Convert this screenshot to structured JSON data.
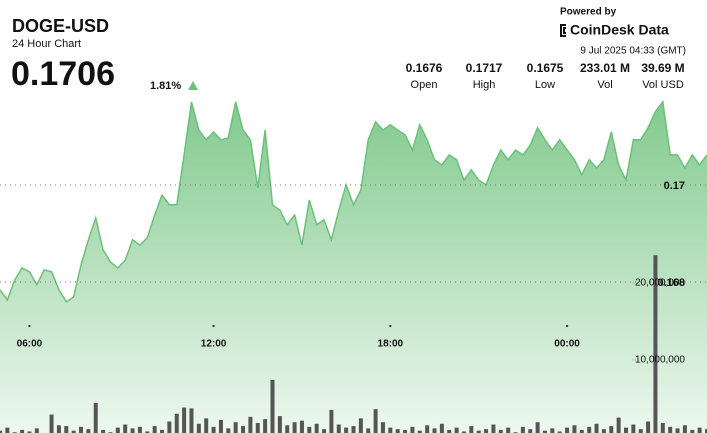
{
  "chart_data": {
    "type": "area",
    "title": "DOGE-USD",
    "subtitle": "24 Hour Chart",
    "price": 0.1706,
    "change": "1.81%",
    "stats": [
      {
        "label": "Open",
        "value": 0.1676
      },
      {
        "label": "High",
        "value": 0.1717
      },
      {
        "label": "Low",
        "value": 0.1675
      },
      {
        "label": "Vol",
        "value": "233.01 M"
      },
      {
        "label": "Vol USD",
        "value": "39.69 M"
      }
    ],
    "powered_by": "Powered by",
    "brand": "CoinDesk Data",
    "timestamp": "9 Jul 2025 04:33 (GMT)",
    "categories": [
      null,
      null,
      null,
      null,
      "06:00",
      null,
      null,
      null,
      null,
      null,
      null,
      null,
      null,
      null,
      null,
      null,
      null,
      null,
      null,
      null,
      null,
      null,
      null,
      null,
      null,
      null,
      null,
      null,
      null,
      "12:00",
      null,
      null,
      null,
      null,
      null,
      null,
      null,
      null,
      null,
      null,
      null,
      null,
      null,
      null,
      null,
      null,
      null,
      null,
      null,
      null,
      null,
      null,
      null,
      "18:00",
      null,
      null,
      null,
      null,
      null,
      null,
      null,
      null,
      null,
      null,
      null,
      null,
      null,
      null,
      null,
      null,
      null,
      null,
      null,
      null,
      null,
      null,
      null,
      "00:00",
      null,
      null,
      null,
      null,
      null,
      null,
      null,
      null,
      null,
      null,
      null,
      null,
      null,
      null,
      null,
      null,
      null,
      null,
      null
    ],
    "series": [
      {
        "color": "#6cc07a",
        "values": [
          0.16784,
          0.16763,
          0.16804,
          0.16829,
          0.16821,
          0.16794,
          0.16825,
          0.16821,
          0.16784,
          0.16759,
          0.16769,
          0.16835,
          0.16887,
          0.16932,
          0.16866,
          0.16841,
          0.16829,
          0.16845,
          0.16887,
          0.16876,
          0.16891,
          0.16938,
          0.16979,
          0.16959,
          0.16959,
          0.17062,
          0.17171,
          0.17113,
          0.17093,
          0.17109,
          0.17093,
          0.17097,
          0.17171,
          0.17113,
          0.17093,
          0.16994,
          0.17113,
          0.16959,
          0.16948,
          0.16918,
          0.16938,
          0.16876,
          0.16969,
          0.16918,
          0.16928,
          0.16887,
          0.16948,
          0.17,
          0.16959,
          0.1699,
          0.17093,
          0.1713,
          0.17113,
          0.17124,
          0.17113,
          0.17103,
          0.17072,
          0.17124,
          0.17093,
          0.17052,
          0.17041,
          0.17062,
          0.17052,
          0.1701,
          0.17031,
          0.1701,
          0.17,
          0.17041,
          0.17072,
          0.17052,
          0.17072,
          0.17062,
          0.17082,
          0.17118,
          0.17093,
          0.17072,
          0.17093,
          0.17072,
          0.17052,
          0.17021,
          0.17052,
          0.17035,
          0.17052,
          0.17109,
          0.17041,
          0.1701,
          0.17093,
          0.17093,
          0.17118,
          0.17151,
          0.17171,
          0.17062,
          0.17062,
          0.17035,
          0.17062,
          0.17041,
          0.17062
        ]
      },
      {
        "color": "#555555",
        "axis": "y2",
        "values": [
          800000,
          1200000,
          600000,
          900000,
          700000,
          1100000,
          500000,
          2900000,
          1500000,
          1400000,
          800000,
          1300000,
          1000000,
          4400000,
          900000,
          600000,
          1200000,
          1600000,
          1100000,
          1300000,
          700000,
          1400000,
          900000,
          2000000,
          3000000,
          3800000,
          3700000,
          1700000,
          2400000,
          1300000,
          2200000,
          1100000,
          1900000,
          1400000,
          2600000,
          1800000,
          2300000,
          7400000,
          2700000,
          1500000,
          1900000,
          2100000,
          1300000,
          1700000,
          1000000,
          3500000,
          1600000,
          1200000,
          1400000,
          2400000,
          1100000,
          3600000,
          1900000,
          1200000,
          1000000,
          900000,
          1300000,
          800000,
          1500000,
          1100000,
          1700000,
          900000,
          1200000,
          700000,
          1400000,
          800000,
          1000000,
          1600000,
          900000,
          1200000,
          600000,
          1300000,
          1000000,
          1900000,
          800000,
          1100000,
          700000,
          1200000,
          1500000,
          900000,
          1300000,
          1700000,
          1000000,
          1400000,
          2500000,
          1200000,
          1600000,
          1000000,
          2000000,
          23600000,
          1800000,
          1300000,
          1100000,
          1500000,
          900000,
          1200000,
          1000000
        ]
      }
    ],
    "ylim": [
      0.16489,
      0.17381
    ],
    "yticks": [
      0.17,
      0.168
    ],
    "y2lim": [
      500000,
      56750000
    ],
    "y2ticks": [
      {
        "value": 20000000,
        "label": "20,000,000"
      },
      {
        "value": 10000000,
        "label": "10,000,000"
      }
    ],
    "grid": true
  }
}
